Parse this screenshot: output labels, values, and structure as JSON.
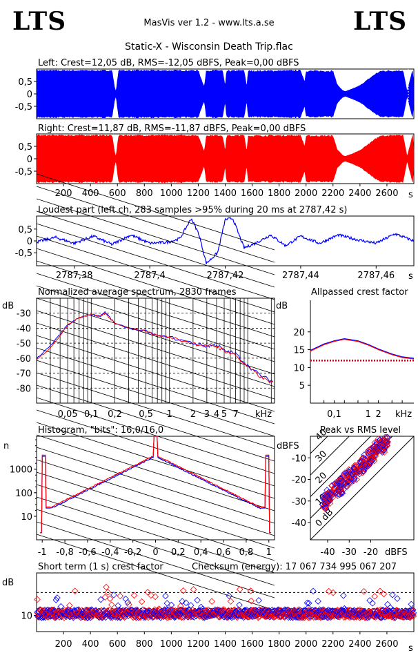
{
  "header": {
    "logo_left": "LTS",
    "logo_right": "LTS",
    "app_line": "MasVis ver 1.2 - www.lts.a.se",
    "file_title": "Static-X - Wisconsin Death Trip.flac"
  },
  "colors": {
    "left": "#0000ff",
    "right": "#ff0000",
    "axis": "#000000"
  },
  "chart_data": [
    {
      "id": "left-waveform",
      "type": "area",
      "title": "Left: Crest=12,05 dB, RMS=-12,05 dBFS, Peak=0,00 dBFS",
      "yticks": [
        "0,5",
        "0",
        "-0,5"
      ],
      "ylim": [
        -1,
        1
      ],
      "xlim": [
        0,
        2800
      ],
      "envelope": [
        [
          0,
          0.97
        ],
        [
          300,
          0.97
        ],
        [
          540,
          0.97
        ],
        [
          560,
          0.97
        ],
        [
          580,
          0.25
        ],
        [
          590,
          0.1
        ],
        [
          600,
          0.6
        ],
        [
          610,
          0.97
        ],
        [
          1200,
          0.97
        ],
        [
          1230,
          0.5
        ],
        [
          1245,
          0.3
        ],
        [
          1260,
          0.97
        ],
        [
          1380,
          0.97
        ],
        [
          1400,
          0.3
        ],
        [
          1410,
          0.95
        ],
        [
          1540,
          0.97
        ],
        [
          1560,
          0.3
        ],
        [
          1570,
          0.95
        ],
        [
          1960,
          0.97
        ],
        [
          1990,
          0.5
        ],
        [
          2000,
          0.95
        ],
        [
          2200,
          0.95
        ],
        [
          2230,
          0.4
        ],
        [
          2270,
          0.15
        ],
        [
          2290,
          0.1
        ],
        [
          2340,
          0.2
        ],
        [
          2400,
          0.35
        ],
        [
          2460,
          0.6
        ],
        [
          2520,
          0.85
        ],
        [
          2560,
          0.95
        ],
        [
          2720,
          0.97
        ],
        [
          2750,
          0.1
        ],
        [
          2790,
          0.97
        ],
        [
          2800,
          0.4
        ]
      ]
    },
    {
      "id": "right-waveform",
      "type": "area",
      "title": "Right: Crest=11,87 dB, RMS=-11,87 dBFS, Peak=0,00 dBFS",
      "yticks": [
        "0,5",
        "0",
        "-0,5"
      ],
      "ylim": [
        -1,
        1
      ],
      "xlim": [
        0,
        2800
      ],
      "xticks": [
        "200",
        "400",
        "600",
        "800",
        "1000",
        "1200",
        "1400",
        "1600",
        "1800",
        "2000",
        "2200",
        "2400",
        "2600"
      ],
      "xunit": "s",
      "envelope": [
        [
          0,
          0.97
        ],
        [
          540,
          0.97
        ],
        [
          560,
          0.97
        ],
        [
          580,
          0.25
        ],
        [
          590,
          0.1
        ],
        [
          600,
          0.6
        ],
        [
          610,
          0.97
        ],
        [
          1200,
          0.97
        ],
        [
          1230,
          0.5
        ],
        [
          1245,
          0.3
        ],
        [
          1260,
          0.97
        ],
        [
          1380,
          0.97
        ],
        [
          1400,
          0.3
        ],
        [
          1410,
          0.95
        ],
        [
          1540,
          0.97
        ],
        [
          1560,
          0.3
        ],
        [
          1570,
          0.95
        ],
        [
          1960,
          0.97
        ],
        [
          1990,
          0.5
        ],
        [
          2000,
          0.95
        ],
        [
          2200,
          0.95
        ],
        [
          2230,
          0.4
        ],
        [
          2270,
          0.15
        ],
        [
          2290,
          0.1
        ],
        [
          2340,
          0.2
        ],
        [
          2400,
          0.35
        ],
        [
          2460,
          0.6
        ],
        [
          2520,
          0.85
        ],
        [
          2560,
          0.95
        ],
        [
          2720,
          0.97
        ],
        [
          2750,
          0.1
        ],
        [
          2790,
          0.97
        ],
        [
          2800,
          0.4
        ]
      ]
    },
    {
      "id": "loudest-part",
      "type": "line",
      "title": "Loudest part (left  ch, 283 samples >95% during 20 ms at 2787,42 s)",
      "yticks": [
        "0,5",
        "0",
        "-0,5"
      ],
      "ylim": [
        -1,
        1
      ],
      "xlim": [
        2787.37,
        2787.47
      ],
      "xticks": [
        "2787,38",
        "2787,4",
        "2787,42",
        "2787,44",
        "2787,46"
      ],
      "xunit": "s",
      "shape": [
        [
          2787.37,
          -0.05
        ],
        [
          2787.375,
          0.15
        ],
        [
          2787.38,
          -0.1
        ],
        [
          2787.385,
          0.2
        ],
        [
          2787.39,
          -0.15
        ],
        [
          2787.395,
          0.25
        ],
        [
          2787.4,
          -0.1
        ],
        [
          2787.405,
          -0.05
        ],
        [
          2787.408,
          0.1
        ],
        [
          2787.411,
          0.95
        ],
        [
          2787.413,
          0.3
        ],
        [
          2787.415,
          -0.95
        ],
        [
          2787.418,
          -0.5
        ],
        [
          2787.42,
          0.9
        ],
        [
          2787.422,
          0.95
        ],
        [
          2787.425,
          -0.3
        ],
        [
          2787.428,
          -0.1
        ],
        [
          2787.432,
          0.25
        ],
        [
          2787.436,
          -0.2
        ],
        [
          2787.44,
          0.2
        ],
        [
          2787.445,
          -0.1
        ],
        [
          2787.45,
          0.25
        ],
        [
          2787.455,
          0.05
        ],
        [
          2787.46,
          -0.1
        ],
        [
          2787.465,
          0.3
        ],
        [
          2787.47,
          0.0
        ]
      ]
    },
    {
      "id": "average-spectrum",
      "type": "line",
      "title": "Normalized average spectrum, 2830 frames",
      "ylabel": "dB",
      "yticks": [
        "-30",
        "-40",
        "-50",
        "-60",
        "-70",
        "-80"
      ],
      "ylim": [
        -90,
        -20
      ],
      "xlog": true,
      "xlim": [
        0.02,
        22
      ],
      "xticks": [
        "0,05",
        "0,1",
        "0,2",
        "0,5",
        "1",
        "2",
        "3",
        "4",
        "5",
        "7"
      ],
      "xunit": "kHz",
      "series": [
        {
          "channel": "left",
          "points": [
            [
              0.02,
              -60
            ],
            [
              0.03,
              -52
            ],
            [
              0.04,
              -44
            ],
            [
              0.05,
              -38
            ],
            [
              0.07,
              -33
            ],
            [
              0.1,
              -31
            ],
            [
              0.13,
              -32
            ],
            [
              0.15,
              -29
            ],
            [
              0.2,
              -37
            ],
            [
              0.3,
              -40
            ],
            [
              0.5,
              -42
            ],
            [
              0.7,
              -45
            ],
            [
              1,
              -46
            ],
            [
              2,
              -50
            ],
            [
              3,
              -52
            ],
            [
              4,
              -51
            ],
            [
              5,
              -55
            ],
            [
              7,
              -57
            ],
            [
              10,
              -65
            ],
            [
              15,
              -72
            ],
            [
              22,
              -76
            ]
          ]
        },
        {
          "channel": "right",
          "points": [
            [
              0.02,
              -61
            ],
            [
              0.03,
              -53
            ],
            [
              0.04,
              -45
            ],
            [
              0.05,
              -38
            ],
            [
              0.07,
              -33
            ],
            [
              0.1,
              -31
            ],
            [
              0.13,
              -32
            ],
            [
              0.15,
              -30
            ],
            [
              0.2,
              -37
            ],
            [
              0.3,
              -40
            ],
            [
              0.5,
              -42
            ],
            [
              0.7,
              -45
            ],
            [
              1,
              -46
            ],
            [
              2,
              -50
            ],
            [
              3,
              -52
            ],
            [
              4,
              -52
            ],
            [
              5,
              -55
            ],
            [
              7,
              -58
            ],
            [
              10,
              -66
            ],
            [
              15,
              -73
            ],
            [
              22,
              -77
            ]
          ]
        }
      ]
    },
    {
      "id": "allpassed-crest",
      "type": "line",
      "title": "Allpassed crest factor",
      "ylabel": "dB",
      "yticks": [
        "20",
        "15",
        "10",
        "5"
      ],
      "ylim": [
        0,
        25
      ],
      "xlog": true,
      "xlim": [
        0.02,
        22
      ],
      "xticks": [
        "0,1",
        "1",
        "2"
      ],
      "xunit": "kHz",
      "reference": 12.05,
      "series": [
        {
          "channel": "left",
          "points": [
            [
              0.02,
              14.8
            ],
            [
              0.05,
              16.6
            ],
            [
              0.1,
              17.5
            ],
            [
              0.2,
              18.1
            ],
            [
              0.5,
              17.5
            ],
            [
              1,
              16.5
            ],
            [
              2,
              15.2
            ],
            [
              5,
              13.8
            ],
            [
              10,
              13.0
            ],
            [
              22,
              12.6
            ]
          ]
        },
        {
          "channel": "right",
          "points": [
            [
              0.02,
              14.6
            ],
            [
              0.05,
              16.4
            ],
            [
              0.1,
              17.3
            ],
            [
              0.2,
              17.9
            ],
            [
              0.5,
              17.3
            ],
            [
              1,
              16.3
            ],
            [
              2,
              15.0
            ],
            [
              5,
              13.6
            ],
            [
              10,
              12.8
            ],
            [
              22,
              12.4
            ]
          ]
        }
      ]
    },
    {
      "id": "histogram",
      "type": "line",
      "title": "Histogram, \"bits\": 16,0/16,0",
      "ylabel": "n",
      "ylog": true,
      "yticks": [
        "1000",
        "100",
        "10"
      ],
      "xlim": [
        -1.05,
        1.05
      ],
      "xticks": [
        "-1",
        "-0,8",
        "-0,6",
        "-0,4",
        "-0,2",
        "0",
        "0,2",
        "0,4",
        "0,6",
        "0,8",
        "1"
      ]
    },
    {
      "id": "peak-vs-rms",
      "type": "scatter",
      "title": "Peak vs RMS level",
      "ylabel": "dBFS",
      "yticks": [
        "-10",
        "-20",
        "-30",
        "-40"
      ],
      "xticks": [
        "-40",
        "-30",
        "-20"
      ],
      "xunit": "dBFS",
      "lim": [
        -48,
        0
      ],
      "diagonals": [
        "40",
        "30",
        "20",
        "10",
        "0 dB"
      ]
    },
    {
      "id": "short-term-crest",
      "type": "scatter",
      "title": "Short term (1 s) crest factor",
      "checksum": "Checksum (energy):  17 067 734 995 067 207",
      "ylabel": "dB",
      "yticks": [
        "10"
      ],
      "xlim": [
        0,
        2800
      ],
      "xticks": [
        "200",
        "400",
        "600",
        "800",
        "1000",
        "1200",
        "1400",
        "1600",
        "1800",
        "2000",
        "2200",
        "2400",
        "2600"
      ],
      "xunit": "s"
    }
  ]
}
